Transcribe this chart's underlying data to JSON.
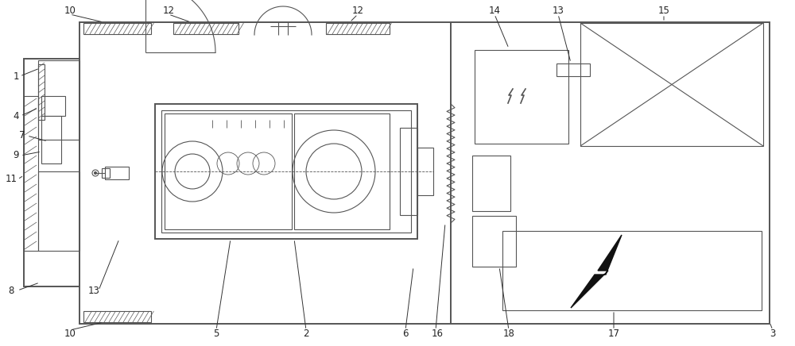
{
  "fig_width": 10.0,
  "fig_height": 4.36,
  "bg_color": "#ffffff",
  "lc": "#555555",
  "lc2": "#333333",
  "black": "#111111"
}
